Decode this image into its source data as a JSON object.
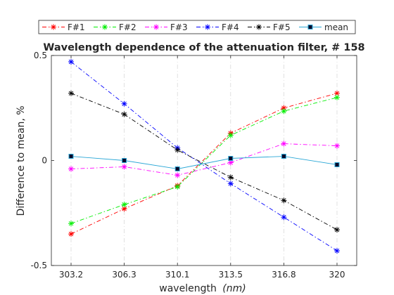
{
  "chart_data": {
    "type": "line",
    "title": "Wavelength dependence of the attenuation filter,  # 158",
    "xlabel": "wavelength",
    "xlabel_unit": "(nm)",
    "ylabel": "Difference to mean, %",
    "categories": [
      "303.2",
      "306.3",
      "310.1",
      "313.5",
      "316.8",
      "320"
    ],
    "x": [
      303.2,
      306.3,
      310.1,
      313.5,
      316.8,
      320
    ],
    "ylim": [
      -0.5,
      0.5
    ],
    "yticks": [
      -0.5,
      0,
      0.5
    ],
    "ytick_labels": [
      "-0.5",
      "0",
      "0.5"
    ],
    "grid": "x-only dashed",
    "legend_position": "top, outside plot, horizontal",
    "series": [
      {
        "name": "F#1",
        "color": "#ff0000",
        "marker": "asterisk",
        "linestyle": "dashdot",
        "values": [
          -0.35,
          -0.23,
          -0.12,
          0.13,
          0.25,
          0.32
        ]
      },
      {
        "name": "F#2",
        "color": "#00ee00",
        "marker": "asterisk",
        "linestyle": "dashdot",
        "values": [
          -0.3,
          -0.21,
          -0.125,
          0.12,
          0.235,
          0.3
        ]
      },
      {
        "name": "F#3",
        "color": "#ff00ff",
        "marker": "asterisk",
        "linestyle": "dashdot",
        "values": [
          -0.04,
          -0.03,
          -0.07,
          -0.01,
          0.08,
          0.07
        ]
      },
      {
        "name": "F#4",
        "color": "#0000ff",
        "marker": "asterisk",
        "linestyle": "dashdot",
        "values": [
          0.47,
          0.27,
          0.06,
          -0.11,
          -0.27,
          -0.43
        ]
      },
      {
        "name": "F#5",
        "color": "#000000",
        "marker": "asterisk",
        "linestyle": "dashdot",
        "values": [
          0.32,
          0.22,
          0.05,
          -0.08,
          -0.19,
          -0.33
        ]
      },
      {
        "name": "mean",
        "color": "#2aa7d6",
        "marker": "square",
        "linestyle": "solid",
        "values": [
          0.02,
          0.0,
          -0.04,
          0.01,
          0.02,
          -0.02
        ]
      }
    ]
  }
}
